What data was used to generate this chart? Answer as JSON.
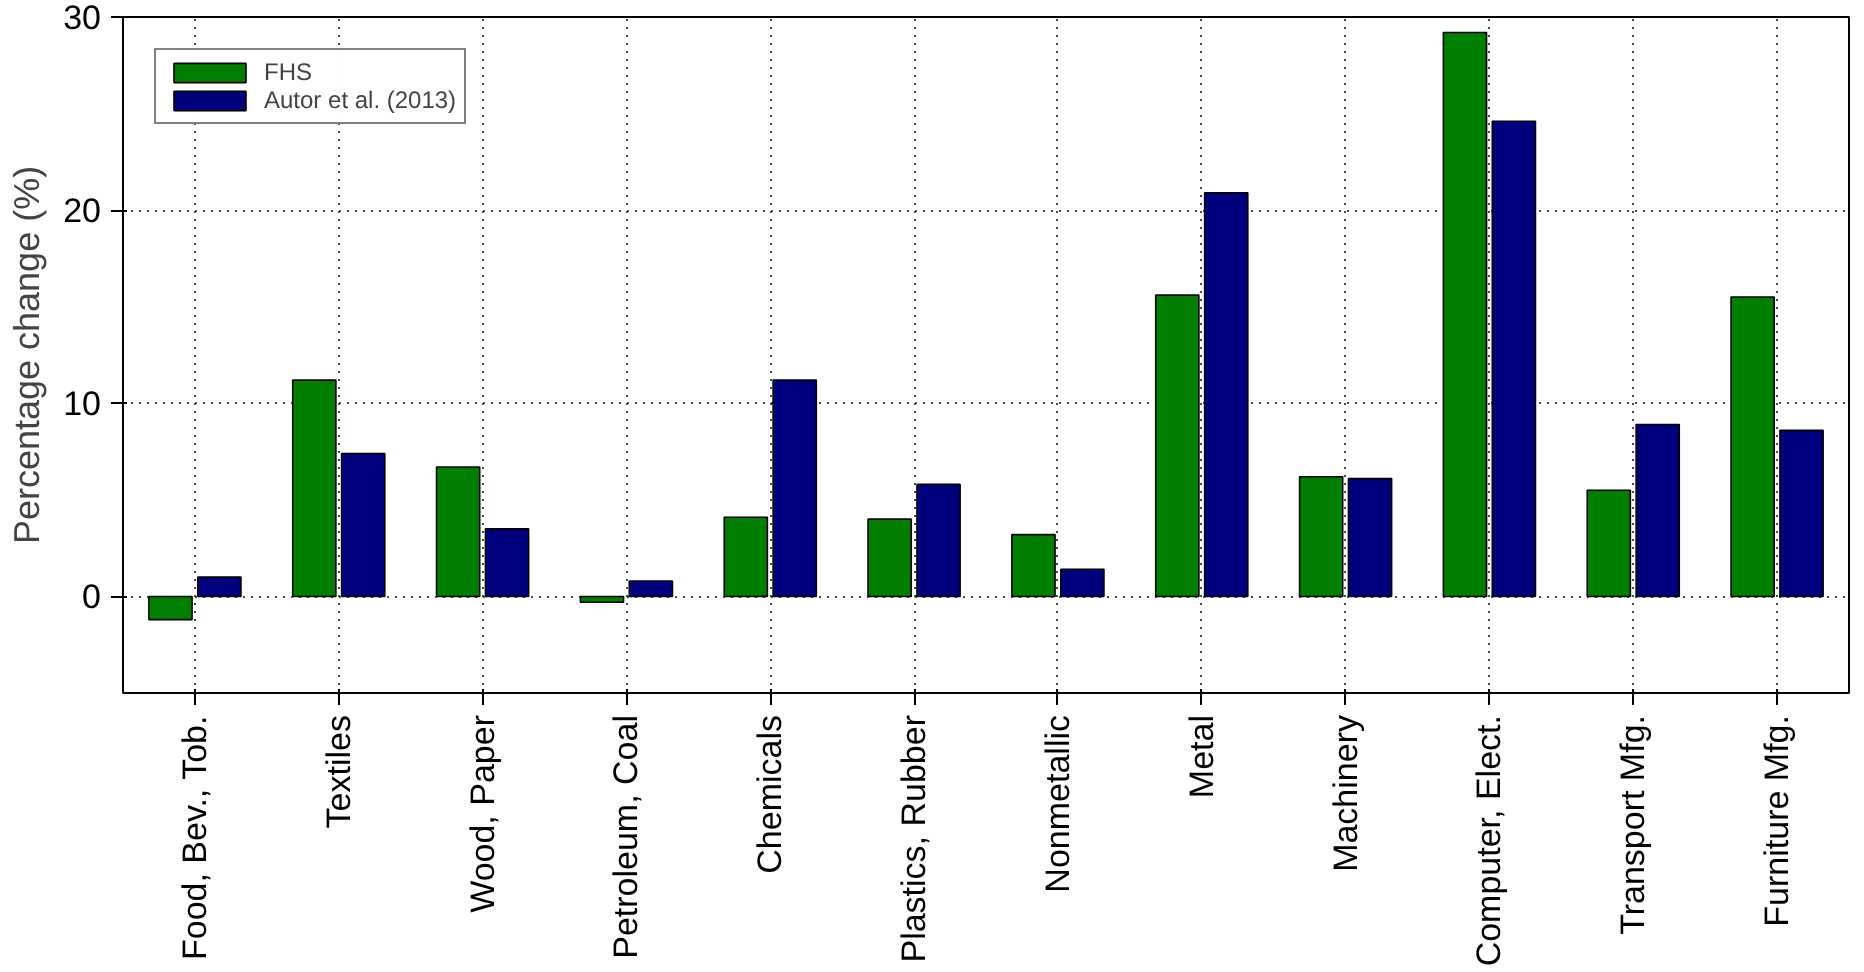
{
  "chart_data": {
    "type": "bar",
    "ylabel": "Percentage change (%)",
    "categories": [
      "Food, Bev., Tob.",
      "Textiles",
      "Wood, Paper",
      "Petroleum, Coal",
      "Chemicals",
      "Plastics, Rubber",
      "Nonmetallic",
      "Metal",
      "Machinery",
      "Computer, Elect.",
      "Transport Mfg.",
      "Furniture Mfg."
    ],
    "series": [
      {
        "name": "FHS",
        "color": "#007f00",
        "values": [
          -1.2,
          11.2,
          6.7,
          -0.3,
          4.1,
          4.0,
          3.2,
          15.6,
          6.2,
          29.2,
          5.5,
          15.5
        ]
      },
      {
        "name": "Autor et al. (2013)",
        "color": "#00007f",
        "values": [
          1.0,
          7.4,
          3.5,
          0.8,
          11.2,
          5.8,
          1.4,
          20.9,
          6.1,
          24.6,
          8.9,
          8.6
        ]
      }
    ],
    "ylim": [
      -5,
      30
    ],
    "yticks": [
      0,
      10,
      20,
      30
    ],
    "grid": true,
    "legend": "top left"
  }
}
